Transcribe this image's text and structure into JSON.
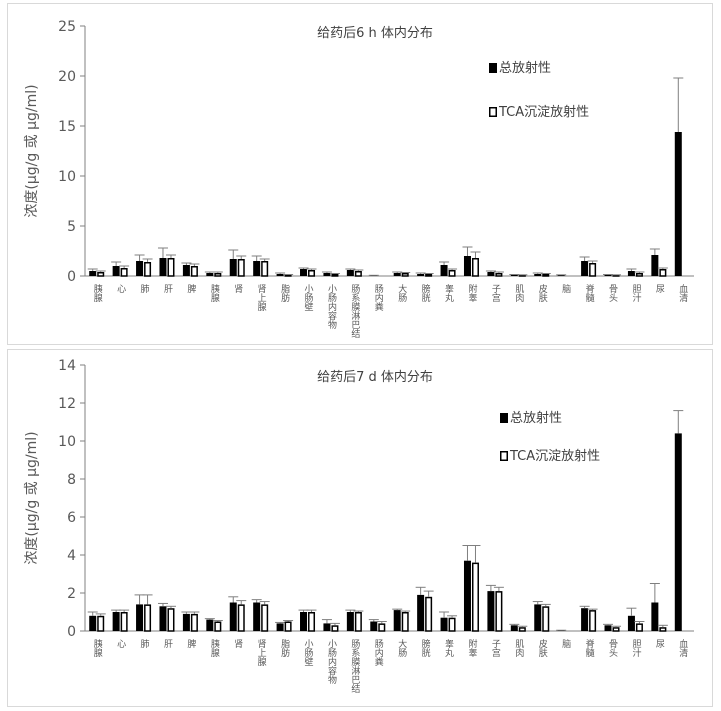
{
  "chart_data": [
    {
      "type": "bar",
      "title": "给药后6 h 体内分布",
      "ylabel": "浓度(μg/g 或 μg/ml)",
      "ylim": [
        0,
        25
      ],
      "yticks": [
        0,
        5,
        10,
        15,
        20,
        25
      ],
      "grid": false,
      "legend_position": "top-right",
      "categories": [
        "胰腺",
        "心",
        "肺",
        "肝",
        "脾",
        "胰腺",
        "肾",
        "肾上腺",
        "脂肪",
        "小肠壁",
        "小肠内容物",
        "肠系膜淋巴结",
        "肠内粪",
        "大肠",
        "膀胱",
        "睾丸",
        "附睾",
        "子宫",
        "肌肉",
        "皮肤",
        "脑",
        "脊髓",
        "骨头",
        "胆汁",
        "尿",
        "血清"
      ],
      "series": [
        {
          "name": "总放射性",
          "color": "#000000",
          "values": [
            0.5,
            1.0,
            1.5,
            1.8,
            1.1,
            0.3,
            1.7,
            1.5,
            0.2,
            0.7,
            0.3,
            0.6,
            0.05,
            0.3,
            0.2,
            1.1,
            2.0,
            0.4,
            0.1,
            0.2,
            0.1,
            1.5,
            0.1,
            0.5,
            2.1,
            14.4
          ],
          "errors": [
            0.2,
            0.4,
            0.6,
            1.0,
            0.2,
            0.1,
            0.9,
            0.5,
            0.1,
            0.1,
            0.1,
            0.1,
            0.02,
            0.1,
            0.1,
            0.3,
            0.9,
            0.1,
            0.05,
            0.1,
            0.02,
            0.4,
            0.05,
            0.2,
            0.6,
            5.4
          ]
        },
        {
          "name": "TCA沉淀放射性",
          "color": "#000000",
          "values": [
            0.4,
            0.8,
            1.4,
            1.8,
            1.0,
            0.3,
            1.7,
            1.5,
            0.1,
            0.6,
            0.2,
            0.5,
            0.0,
            0.3,
            0.2,
            0.6,
            1.8,
            0.3,
            0.1,
            0.2,
            0.0,
            1.3,
            0.1,
            0.3,
            0.7,
            0
          ],
          "errors": [
            0.1,
            0.2,
            0.3,
            0.3,
            0.2,
            0.1,
            0.3,
            0.2,
            0.05,
            0.1,
            0.05,
            0.1,
            0,
            0.05,
            0.05,
            0.1,
            0.6,
            0.1,
            0.02,
            0.05,
            0,
            0.2,
            0.02,
            0.1,
            0.1,
            0
          ]
        }
      ]
    },
    {
      "type": "bar",
      "title": "给药后7 d 体内分布",
      "ylabel": "浓度(μg/g 或 μg/ml)",
      "ylim": [
        0,
        14
      ],
      "yticks": [
        0,
        2,
        4,
        6,
        8,
        10,
        12,
        14
      ],
      "grid": false,
      "legend_position": "top-right",
      "categories": [
        "胰腺",
        "心",
        "肺",
        "肝",
        "脾",
        "胰腺",
        "肾",
        "肾上腺",
        "脂肪",
        "小肠壁",
        "小肠内容物",
        "肠系膜淋巴结",
        "肠内粪",
        "大肠",
        "膀胱",
        "睾丸",
        "附睾",
        "子宫",
        "肌肉",
        "皮肤",
        "脑",
        "脊髓",
        "骨头",
        "胆汁",
        "尿",
        "血清"
      ],
      "series": [
        {
          "name": "总放射性",
          "color": "#000000",
          "values": [
            0.8,
            1.0,
            1.4,
            1.3,
            0.9,
            0.6,
            1.5,
            1.5,
            0.4,
            1.0,
            0.4,
            1.0,
            0.5,
            1.1,
            1.9,
            0.7,
            3.7,
            2.1,
            0.3,
            1.4,
            0.03,
            1.2,
            0.3,
            0.8,
            1.5,
            10.4
          ],
          "errors": [
            0.2,
            0.1,
            0.5,
            0.15,
            0.1,
            0.05,
            0.3,
            0.15,
            0.05,
            0.1,
            0.2,
            0.1,
            0.1,
            0.05,
            0.4,
            0.3,
            0.8,
            0.3,
            0.05,
            0.15,
            0.01,
            0.1,
            0.05,
            0.4,
            1.0,
            1.2
          ]
        },
        {
          "name": "TCA沉淀放射性",
          "color": "#000000",
          "values": [
            0.8,
            1.0,
            1.4,
            1.2,
            0.9,
            0.5,
            1.4,
            1.4,
            0.5,
            1.0,
            0.3,
            1.0,
            0.4,
            1.0,
            1.8,
            0.7,
            3.6,
            2.1,
            0.2,
            1.3,
            0.0,
            1.1,
            0.2,
            0.4,
            0.2,
            0
          ],
          "errors": [
            0.1,
            0.1,
            0.5,
            0.1,
            0.1,
            0.05,
            0.2,
            0.15,
            0.05,
            0.1,
            0.1,
            0.05,
            0.1,
            0.05,
            0.3,
            0.1,
            0.9,
            0.2,
            0.05,
            0.1,
            0,
            0.05,
            0.05,
            0.1,
            0.1,
            0
          ]
        }
      ]
    }
  ]
}
